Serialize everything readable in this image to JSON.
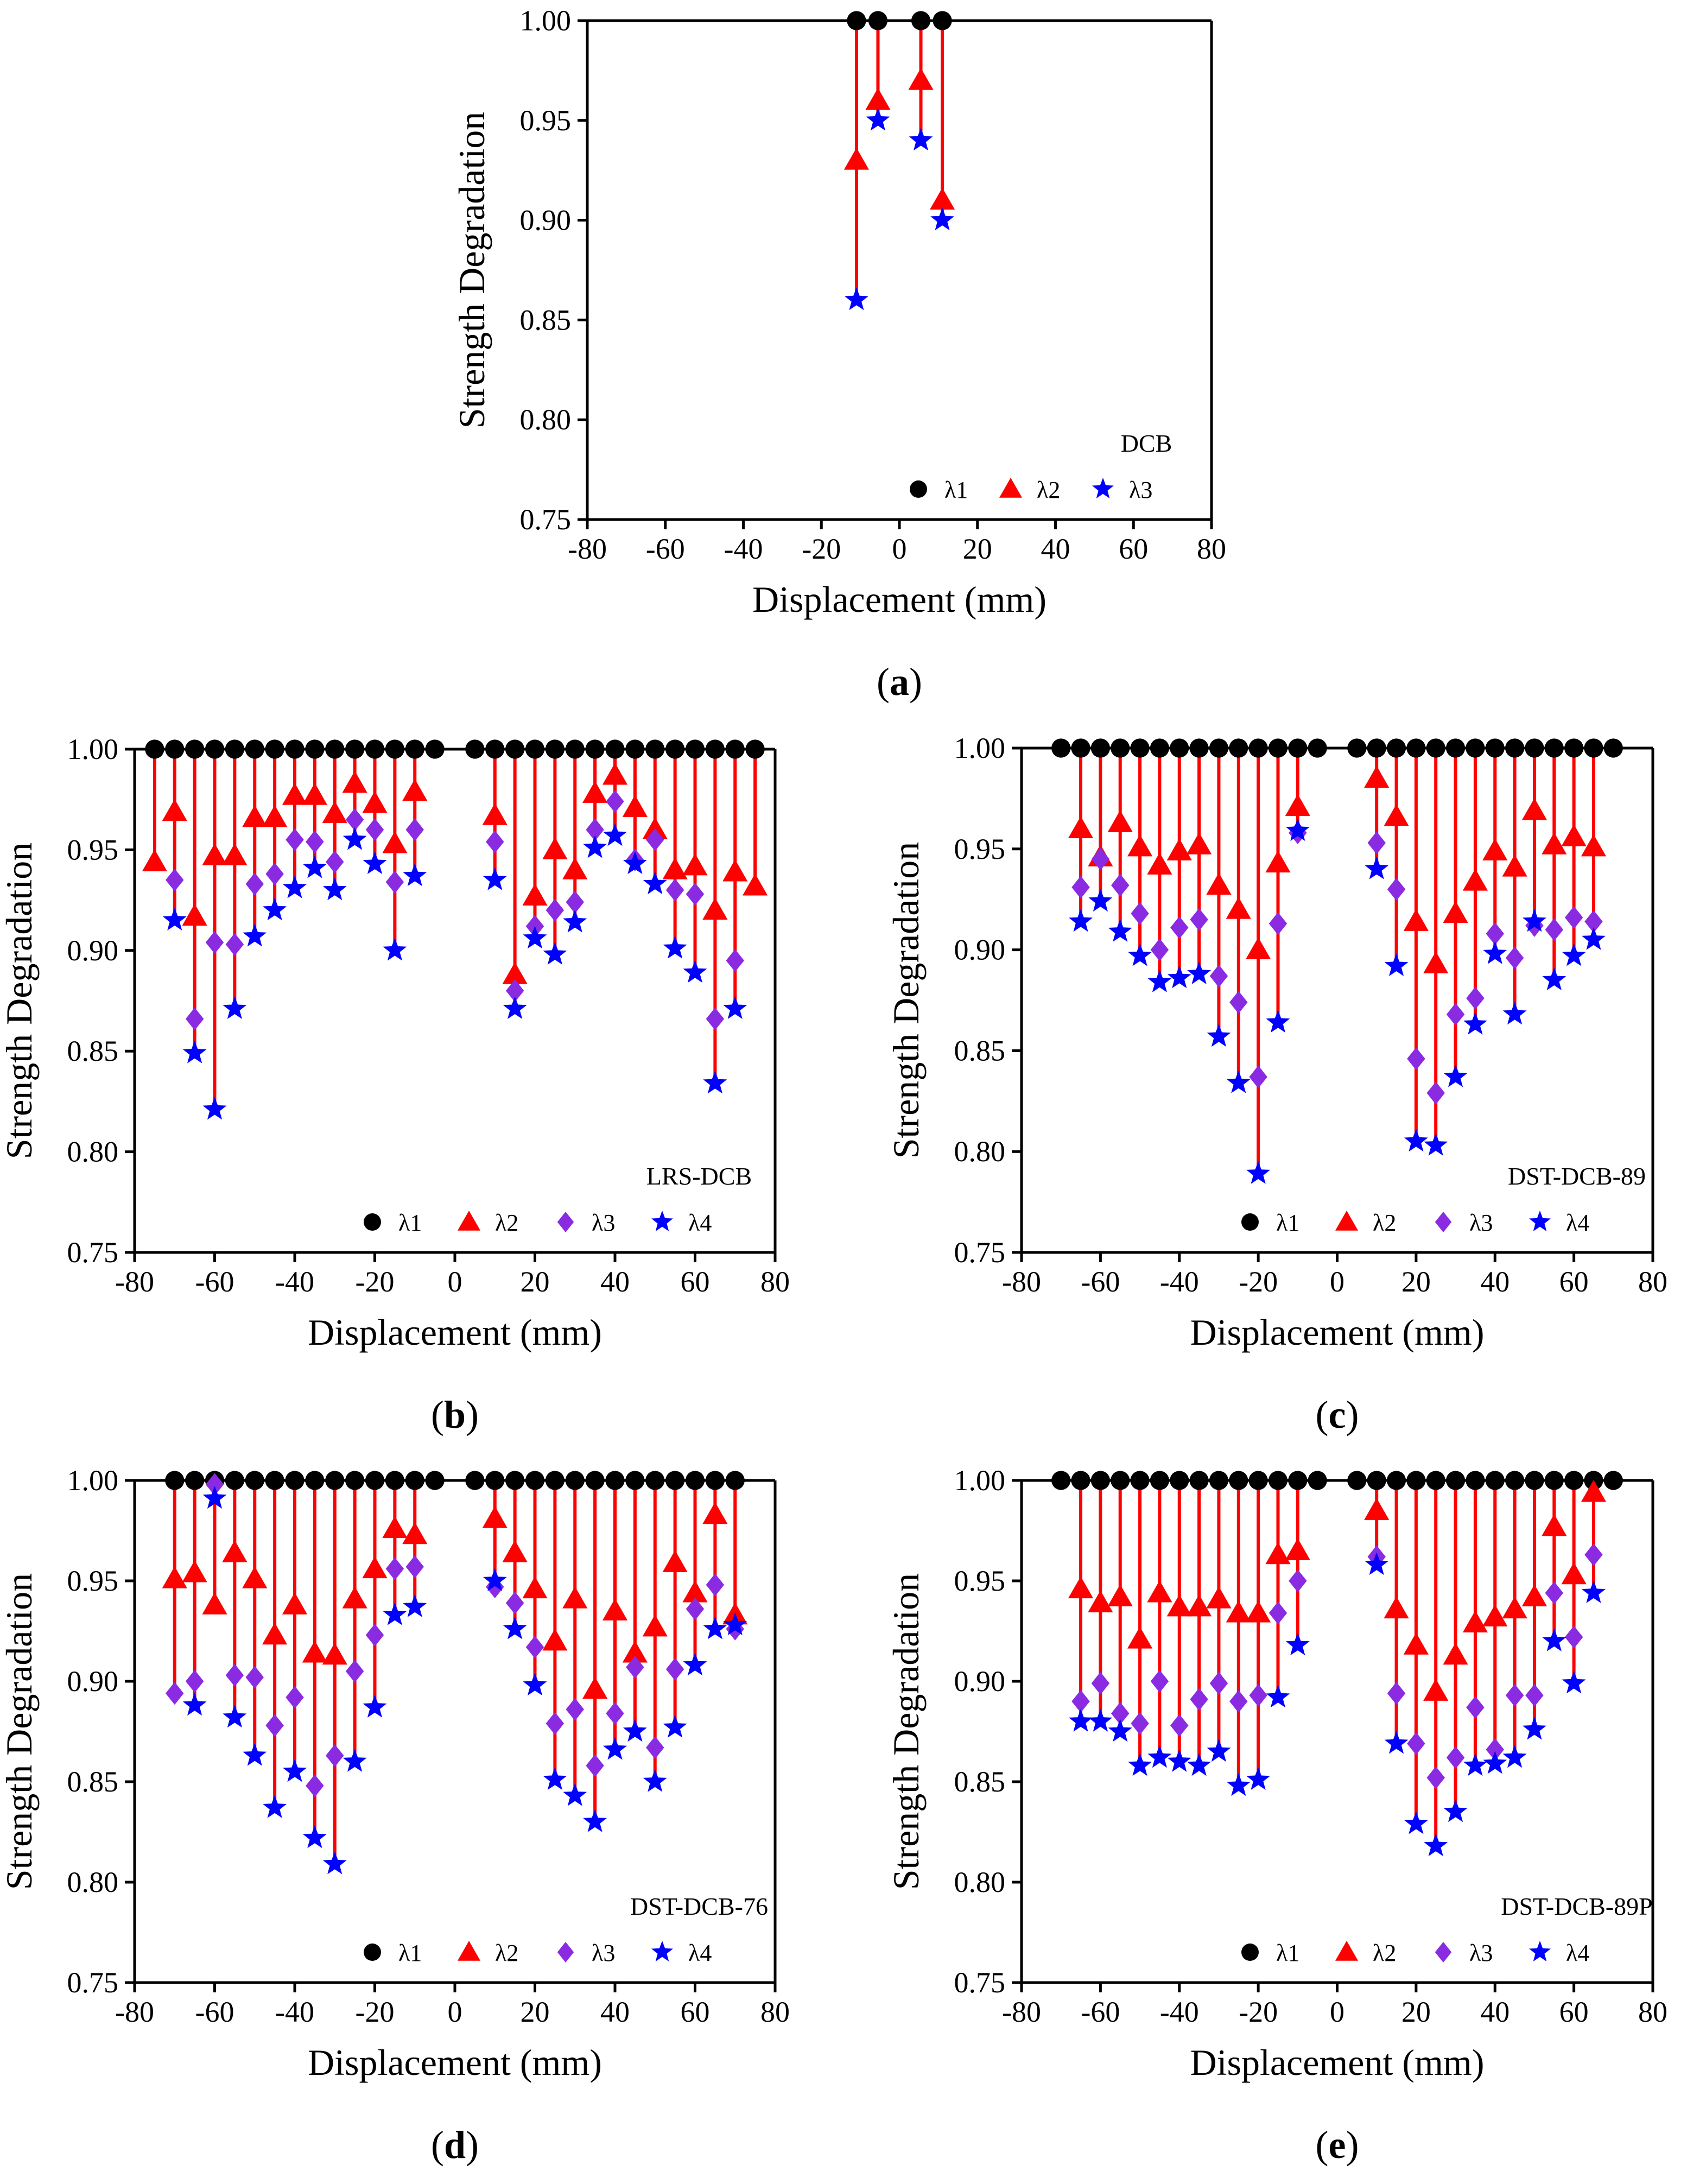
{
  "figure": {
    "colors": {
      "lambda1": "#000000",
      "lambda2": "#ff0000",
      "lambda3": "#8a2be2",
      "lambda4": "#0000ff",
      "axis": "#000000",
      "background": "#ffffff"
    }
  },
  "chart_data": [
    {
      "id": "a",
      "type": "scatter",
      "panel_label": "a",
      "legend_title": "DCB",
      "xlabel": "Displacement (mm)",
      "ylabel": "Strength Degradation",
      "xlim": [
        -80,
        80
      ],
      "ylim": [
        0.75,
        1.0
      ],
      "xticks": [
        -80,
        -60,
        -40,
        -20,
        0,
        20,
        40,
        60,
        80
      ],
      "yticks": [
        0.75,
        0.8,
        0.85,
        0.9,
        0.95,
        1.0
      ],
      "x": [
        -11,
        -5.5,
        5.5,
        11
      ],
      "series": [
        {
          "name": "λ1",
          "sub": "1",
          "marker": "circle",
          "color": "#000000",
          "values": [
            1.0,
            1.0,
            1.0,
            1.0
          ]
        },
        {
          "name": "λ2",
          "sub": "2",
          "marker": "triangle",
          "color": "#ff0000",
          "values": [
            0.93,
            0.96,
            0.97,
            0.91
          ]
        },
        {
          "name": "λ3",
          "sub": "3",
          "marker": "star",
          "color": "#0000ff",
          "values": [
            0.86,
            0.95,
            0.94,
            0.9
          ]
        }
      ]
    },
    {
      "id": "b",
      "type": "scatter",
      "panel_label": "b",
      "legend_title": "LRS-DCB",
      "xlabel": "Displacement (mm)",
      "ylabel": "Strength Degradation",
      "xlim": [
        -80,
        80
      ],
      "ylim": [
        0.75,
        1.0
      ],
      "xticks": [
        -80,
        -60,
        -40,
        -20,
        0,
        20,
        40,
        60,
        80
      ],
      "yticks": [
        0.75,
        0.8,
        0.85,
        0.9,
        0.95,
        1.0
      ],
      "x": [
        -75,
        -70,
        -65,
        -60,
        -55,
        -50,
        -45,
        -40,
        -35,
        -30,
        -25,
        -20,
        -15,
        -10,
        -5,
        5,
        10,
        15,
        20,
        25,
        30,
        35,
        40,
        45,
        50,
        55,
        60,
        65,
        70,
        75
      ],
      "series": [
        {
          "name": "λ1",
          "sub": "1",
          "marker": "circle",
          "color": "#000000",
          "values": [
            1,
            1,
            1,
            1,
            1,
            1,
            1,
            1,
            1,
            1,
            1,
            1,
            1,
            1,
            1,
            1,
            1,
            1,
            1,
            1,
            1,
            1,
            1,
            1,
            1,
            1,
            1,
            1,
            1,
            1
          ]
        },
        {
          "name": "λ2",
          "sub": "2",
          "marker": "triangle",
          "color": "#ff0000",
          "values": [
            0.944,
            0.969,
            0.917,
            0.947,
            0.947,
            0.966,
            0.966,
            0.977,
            0.977,
            0.968,
            0.983,
            0.973,
            0.953,
            0.979,
            null,
            null,
            0.967,
            0.888,
            0.927,
            0.95,
            0.94,
            0.978,
            0.987,
            0.971,
            0.96,
            0.94,
            0.942,
            0.92,
            0.939,
            0.932
          ]
        },
        {
          "name": "λ3",
          "sub": "3",
          "marker": "diamond",
          "color": "#8a2be2",
          "values": [
            null,
            0.935,
            0.866,
            0.904,
            0.903,
            0.933,
            0.938,
            0.955,
            0.954,
            0.944,
            0.965,
            0.96,
            0.934,
            0.96,
            null,
            null,
            0.954,
            0.88,
            0.912,
            0.92,
            0.924,
            0.96,
            0.974,
            0.945,
            0.955,
            0.93,
            0.928,
            0.866,
            0.895,
            null
          ]
        },
        {
          "name": "λ4",
          "sub": "4",
          "marker": "star",
          "color": "#0000ff",
          "values": [
            null,
            0.915,
            0.849,
            0.821,
            0.871,
            0.907,
            0.92,
            0.931,
            0.941,
            0.93,
            0.955,
            0.943,
            0.9,
            0.937,
            null,
            null,
            0.935,
            0.871,
            0.906,
            0.898,
            0.914,
            0.951,
            0.957,
            0.943,
            0.933,
            0.901,
            0.889,
            0.834,
            0.871,
            null
          ]
        }
      ]
    },
    {
      "id": "c",
      "type": "scatter",
      "panel_label": "c",
      "legend_title": "DST-DCB-89",
      "xlabel": "Displacement (mm)",
      "ylabel": "Strength Degradation",
      "xlim": [
        -80,
        80
      ],
      "ylim": [
        0.75,
        1.0
      ],
      "xticks": [
        -80,
        -60,
        -40,
        -20,
        0,
        20,
        40,
        60,
        80
      ],
      "yticks": [
        0.75,
        0.8,
        0.85,
        0.9,
        0.95,
        1.0
      ],
      "x": [
        -70,
        -65,
        -60,
        -55,
        -50,
        -45,
        -40,
        -35,
        -30,
        -25,
        -20,
        -15,
        -10,
        -5,
        5,
        10,
        15,
        20,
        25,
        30,
        35,
        40,
        45,
        50,
        55,
        60,
        65,
        70
      ],
      "series": [
        {
          "name": "λ1",
          "sub": "1",
          "marker": "circle",
          "color": "#000000",
          "values": [
            1,
            1,
            1,
            1,
            1,
            1,
            1,
            1,
            1,
            1,
            1,
            1,
            1,
            1,
            1,
            1,
            1,
            1,
            1,
            1,
            1,
            1,
            1,
            1,
            1,
            1,
            1,
            1
          ]
        },
        {
          "name": "λ2",
          "sub": "2",
          "marker": "triangle",
          "color": "#ff0000",
          "values": [
            null,
            0.96,
            0.946,
            0.963,
            0.951,
            0.942,
            0.949,
            0.952,
            0.932,
            0.92,
            0.9,
            0.943,
            0.971,
            null,
            null,
            0.985,
            0.966,
            0.914,
            0.893,
            0.918,
            0.934,
            0.949,
            0.941,
            0.969,
            0.952,
            0.956,
            0.951,
            null
          ]
        },
        {
          "name": "λ3",
          "sub": "3",
          "marker": "diamond",
          "color": "#8a2be2",
          "values": [
            null,
            0.931,
            0.945,
            0.932,
            0.918,
            0.9,
            0.911,
            0.915,
            0.887,
            0.874,
            0.837,
            0.913,
            0.958,
            null,
            null,
            0.953,
            0.93,
            0.846,
            0.829,
            0.868,
            0.876,
            0.908,
            0.896,
            0.912,
            0.91,
            0.916,
            0.914,
            null
          ]
        },
        {
          "name": "λ4",
          "sub": "4",
          "marker": "star",
          "color": "#0000ff",
          "values": [
            null,
            0.914,
            0.924,
            0.909,
            0.897,
            0.884,
            0.886,
            0.888,
            0.857,
            0.834,
            0.789,
            0.864,
            0.959,
            null,
            null,
            0.94,
            0.892,
            0.805,
            0.803,
            0.837,
            0.863,
            0.898,
            0.868,
            0.914,
            0.885,
            0.897,
            0.905,
            null
          ]
        }
      ]
    },
    {
      "id": "d",
      "type": "scatter",
      "panel_label": "d",
      "legend_title": "DST-DCB-76",
      "xlabel": "Displacement (mm)",
      "ylabel": "Strength Degradation",
      "xlim": [
        -80,
        80
      ],
      "ylim": [
        0.75,
        1.0
      ],
      "xticks": [
        -80,
        -60,
        -40,
        -20,
        0,
        20,
        40,
        60,
        80
      ],
      "yticks": [
        0.75,
        0.8,
        0.85,
        0.9,
        0.95,
        1.0
      ],
      "x": [
        -70,
        -65,
        -60,
        -55,
        -50,
        -45,
        -40,
        -35,
        -30,
        -25,
        -20,
        -15,
        -10,
        -5,
        5,
        10,
        15,
        20,
        25,
        30,
        35,
        40,
        45,
        50,
        55,
        60,
        65,
        70
      ],
      "series": [
        {
          "name": "λ1",
          "sub": "1",
          "marker": "circle",
          "color": "#000000",
          "values": [
            1,
            1,
            1,
            1,
            1,
            1,
            1,
            1,
            1,
            1,
            1,
            1,
            1,
            1,
            1,
            1,
            1,
            1,
            1,
            1,
            1,
            1,
            1,
            1,
            1,
            1,
            1,
            1
          ]
        },
        {
          "name": "λ2",
          "sub": "2",
          "marker": "triangle",
          "color": "#ff0000",
          "values": [
            0.951,
            0.954,
            0.938,
            0.964,
            0.951,
            0.923,
            0.938,
            0.914,
            0.913,
            0.941,
            0.956,
            0.976,
            0.973,
            null,
            null,
            0.981,
            0.964,
            0.946,
            0.92,
            0.941,
            0.896,
            0.935,
            0.914,
            0.927,
            0.959,
            0.944,
            0.983,
            0.933
          ]
        },
        {
          "name": "λ3",
          "sub": "3",
          "marker": "diamond",
          "color": "#8a2be2",
          "values": [
            0.894,
            0.9,
            0.998,
            0.903,
            0.902,
            0.878,
            0.892,
            0.848,
            0.863,
            0.905,
            0.923,
            0.956,
            0.957,
            null,
            null,
            0.947,
            0.939,
            0.917,
            0.879,
            0.886,
            0.858,
            0.884,
            0.907,
            0.867,
            0.906,
            0.936,
            0.948,
            0.926
          ]
        },
        {
          "name": "λ4",
          "sub": "4",
          "marker": "star",
          "color": "#0000ff",
          "values": [
            null,
            0.888,
            0.991,
            0.882,
            0.863,
            0.837,
            0.855,
            0.822,
            0.809,
            0.86,
            0.887,
            0.933,
            0.937,
            null,
            null,
            0.95,
            0.926,
            0.898,
            0.851,
            0.843,
            0.83,
            0.866,
            0.875,
            0.85,
            0.877,
            0.908,
            0.926,
            0.928
          ]
        }
      ]
    },
    {
      "id": "e",
      "type": "scatter",
      "panel_label": "e",
      "legend_title": "DST-DCB-89P",
      "xlabel": "Displacement (mm)",
      "ylabel": "Strength Degradation",
      "xlim": [
        -80,
        80
      ],
      "ylim": [
        0.75,
        1.0
      ],
      "xticks": [
        -80,
        -60,
        -40,
        -20,
        0,
        20,
        40,
        60,
        80
      ],
      "yticks": [
        0.75,
        0.8,
        0.85,
        0.9,
        0.95,
        1.0
      ],
      "x": [
        -70,
        -65,
        -60,
        -55,
        -50,
        -45,
        -40,
        -35,
        -30,
        -25,
        -20,
        -15,
        -10,
        -5,
        5,
        10,
        15,
        20,
        25,
        30,
        35,
        40,
        45,
        50,
        55,
        60,
        65,
        70
      ],
      "series": [
        {
          "name": "λ1",
          "sub": "1",
          "marker": "circle",
          "color": "#000000",
          "values": [
            1,
            1,
            1,
            1,
            1,
            1,
            1,
            1,
            1,
            1,
            1,
            1,
            1,
            1,
            1,
            1,
            1,
            1,
            1,
            1,
            1,
            1,
            1,
            1,
            1,
            1,
            1,
            1
          ]
        },
        {
          "name": "λ2",
          "sub": "2",
          "marker": "triangle",
          "color": "#ff0000",
          "values": [
            null,
            0.946,
            0.939,
            0.942,
            0.921,
            0.944,
            0.937,
            0.937,
            0.941,
            0.934,
            0.934,
            0.963,
            0.965,
            null,
            null,
            0.985,
            0.936,
            0.918,
            0.895,
            0.913,
            0.929,
            0.932,
            0.936,
            0.942,
            0.977,
            0.953,
            0.994,
            null
          ]
        },
        {
          "name": "λ3",
          "sub": "3",
          "marker": "diamond",
          "color": "#8a2be2",
          "values": [
            null,
            0.89,
            0.899,
            0.884,
            0.879,
            0.9,
            0.878,
            0.891,
            0.899,
            0.89,
            0.893,
            0.934,
            0.95,
            null,
            null,
            0.962,
            0.894,
            0.869,
            0.852,
            0.862,
            0.887,
            0.866,
            0.893,
            0.893,
            0.944,
            0.922,
            0.963,
            null
          ]
        },
        {
          "name": "λ4",
          "sub": "4",
          "marker": "star",
          "color": "#0000ff",
          "values": [
            null,
            0.88,
            0.88,
            0.875,
            0.858,
            0.862,
            0.86,
            0.858,
            0.865,
            0.848,
            0.851,
            0.892,
            0.918,
            null,
            null,
            0.958,
            0.869,
            0.829,
            0.818,
            0.835,
            0.858,
            0.859,
            0.862,
            0.876,
            0.92,
            0.899,
            0.944,
            null
          ]
        }
      ]
    }
  ]
}
